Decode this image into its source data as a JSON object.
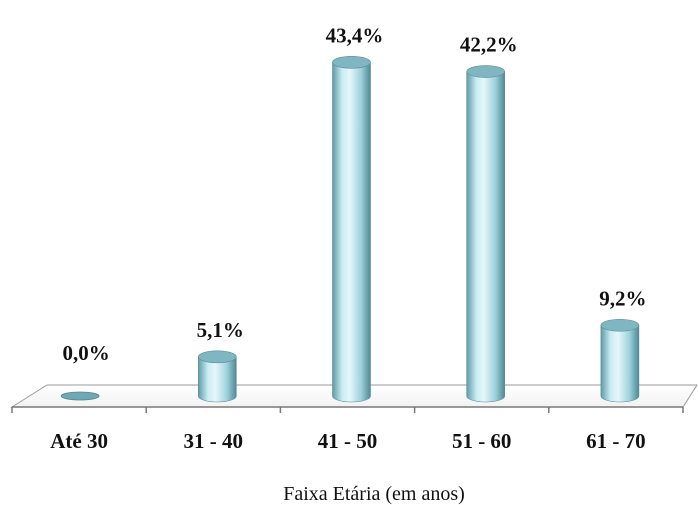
{
  "chart_data": {
    "type": "bar",
    "categories": [
      "Até 30",
      "31 - 40",
      "41 - 50",
      "51 - 60",
      "61 - 70"
    ],
    "values": [
      0.0,
      5.1,
      43.4,
      42.2,
      9.2
    ],
    "data_labels": [
      "0,0%",
      "5,1%",
      "43,4%",
      "42,2%",
      "9,2%"
    ],
    "title": "",
    "xlabel": "Faixa Etária (em anos)",
    "ylabel": "",
    "ylim": [
      0,
      45
    ],
    "grid": false,
    "legend": "none",
    "style": "3d-cylinder",
    "bar_color": "#a9dbe6"
  }
}
